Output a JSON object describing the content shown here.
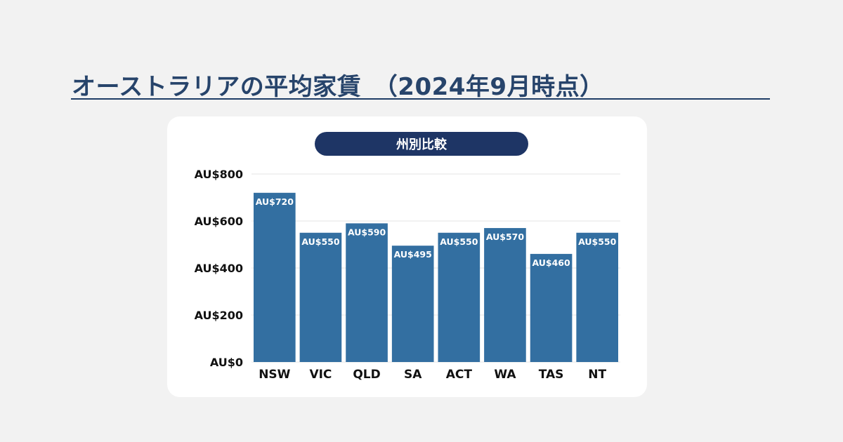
{
  "page": {
    "title": "オーストラリアの平均家賃　（2024年9月時点）",
    "subtitle": "州別比較"
  },
  "colors": {
    "title": "#27446b",
    "rule": "#1f3d66",
    "bar": "#336fa1",
    "pill": "#1e3565",
    "card": "#ffffff",
    "background": "#f2f2f2"
  },
  "chart_data": {
    "type": "bar",
    "title": "州別比較",
    "categories": [
      "NSW",
      "VIC",
      "QLD",
      "SA",
      "ACT",
      "WA",
      "TAS",
      "NT"
    ],
    "values": [
      720,
      550,
      590,
      495,
      550,
      570,
      460,
      550
    ],
    "value_labels": [
      "AU$720",
      "AU$550",
      "AU$590",
      "AU$495",
      "AU$550",
      "AU$570",
      "AU$460",
      "AU$550"
    ],
    "ylim": [
      0,
      800
    ],
    "yticks": [
      0,
      200,
      400,
      600,
      800
    ],
    "ytick_labels": [
      "AU$0",
      "AU$200",
      "AU$400",
      "AU$600",
      "AU$800"
    ],
    "xlabel": "",
    "ylabel": "",
    "grid": true,
    "legend": "none"
  }
}
